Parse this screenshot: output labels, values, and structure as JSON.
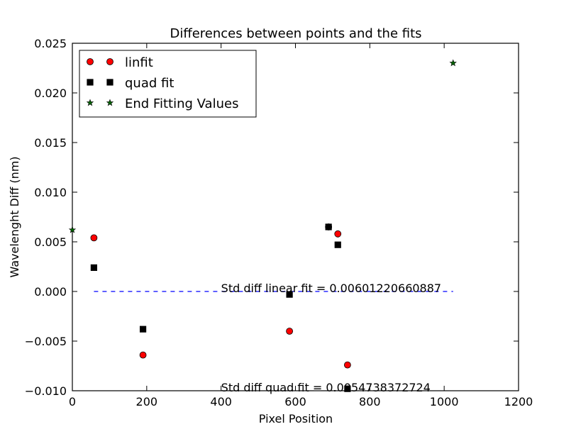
{
  "chart_data": {
    "type": "scatter",
    "title": "Differences between points and the fits",
    "xlabel": "Pixel Position",
    "ylabel": "Wavelenght Diff (nm)",
    "xlim": [
      0,
      1200
    ],
    "ylim": [
      -0.01,
      0.025
    ],
    "xticks": [
      0,
      200,
      400,
      600,
      800,
      1000,
      1200
    ],
    "xtick_labels": [
      "0",
      "200",
      "400",
      "600",
      "800",
      "1000",
      "1200"
    ],
    "yticks": [
      -0.01,
      -0.005,
      0.0,
      0.005,
      0.01,
      0.015,
      0.02,
      0.025
    ],
    "ytick_labels": [
      "−0.010",
      "−0.005",
      "0.000",
      "0.005",
      "0.010",
      "0.015",
      "0.020",
      "0.025"
    ],
    "grid": false,
    "legend_position": "top-left",
    "series": [
      {
        "name": "linfit",
        "marker": "circle",
        "color": "#ff0000",
        "points": [
          {
            "x": 58,
            "y": 0.0054
          },
          {
            "x": 190,
            "y": -0.0064
          },
          {
            "x": 584,
            "y": -0.004
          },
          {
            "x": 689,
            "y": 0.0065
          },
          {
            "x": 714,
            "y": 0.0058
          },
          {
            "x": 740,
            "y": -0.0074
          }
        ]
      },
      {
        "name": "quad fit",
        "marker": "square",
        "color": "#000000",
        "points": [
          {
            "x": 58,
            "y": 0.0024
          },
          {
            "x": 190,
            "y": -0.0038
          },
          {
            "x": 584,
            "y": -0.0003
          },
          {
            "x": 689,
            "y": 0.0065
          },
          {
            "x": 714,
            "y": 0.0047
          },
          {
            "x": 740,
            "y": -0.0098
          }
        ]
      },
      {
        "name": "End Fitting Values",
        "marker": "star",
        "color": "#006400",
        "points": [
          {
            "x": 0,
            "y": 0.0062
          },
          {
            "x": 1024,
            "y": 0.023
          }
        ]
      }
    ],
    "reference_line": {
      "style": "dashed",
      "color": "#0000ff",
      "y": 0.0,
      "x_start": 58,
      "x_end": 1024
    },
    "annotations": [
      {
        "text": "Std diff linear fit = 0.00601220660887",
        "x": 400,
        "y": 0.0
      },
      {
        "text": "Std diff quad fit = 0.0054738372724",
        "x": 400,
        "y": -0.01
      }
    ]
  }
}
